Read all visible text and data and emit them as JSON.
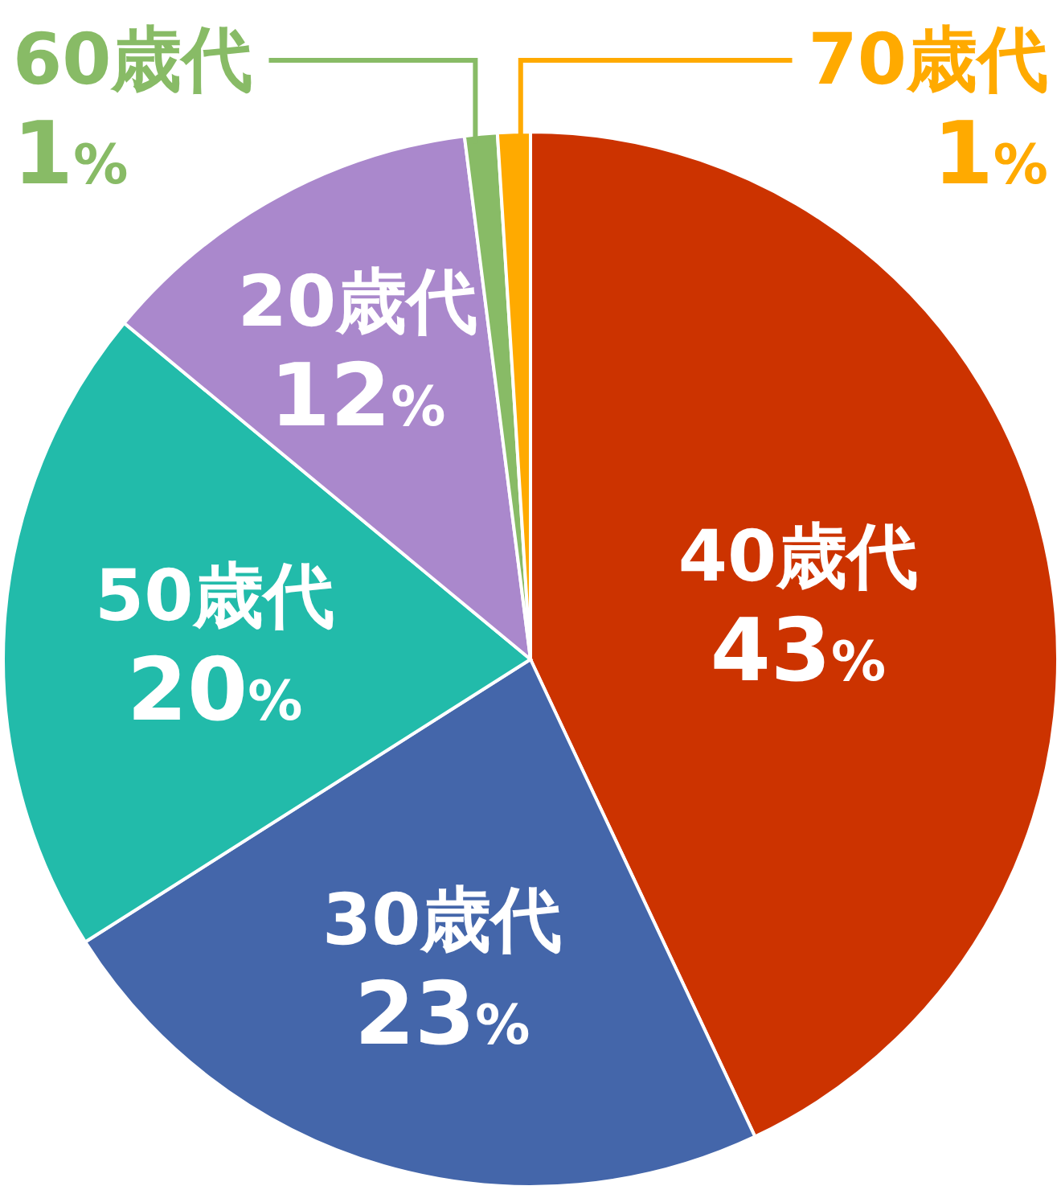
{
  "chart_data": {
    "type": "pie",
    "categories": [
      "40歳代",
      "30歳代",
      "50歳代",
      "20歳代",
      "60歳代",
      "70歳代"
    ],
    "values": [
      43,
      23,
      20,
      12,
      1,
      1
    ],
    "value_labels": [
      "43%",
      "23%",
      "20%",
      "12%",
      "1%",
      "1%"
    ],
    "colors": [
      "#cc3300",
      "#4466aa",
      "#22bbaa",
      "#aa88cc",
      "#88bb66",
      "#ffaa00"
    ]
  }
}
